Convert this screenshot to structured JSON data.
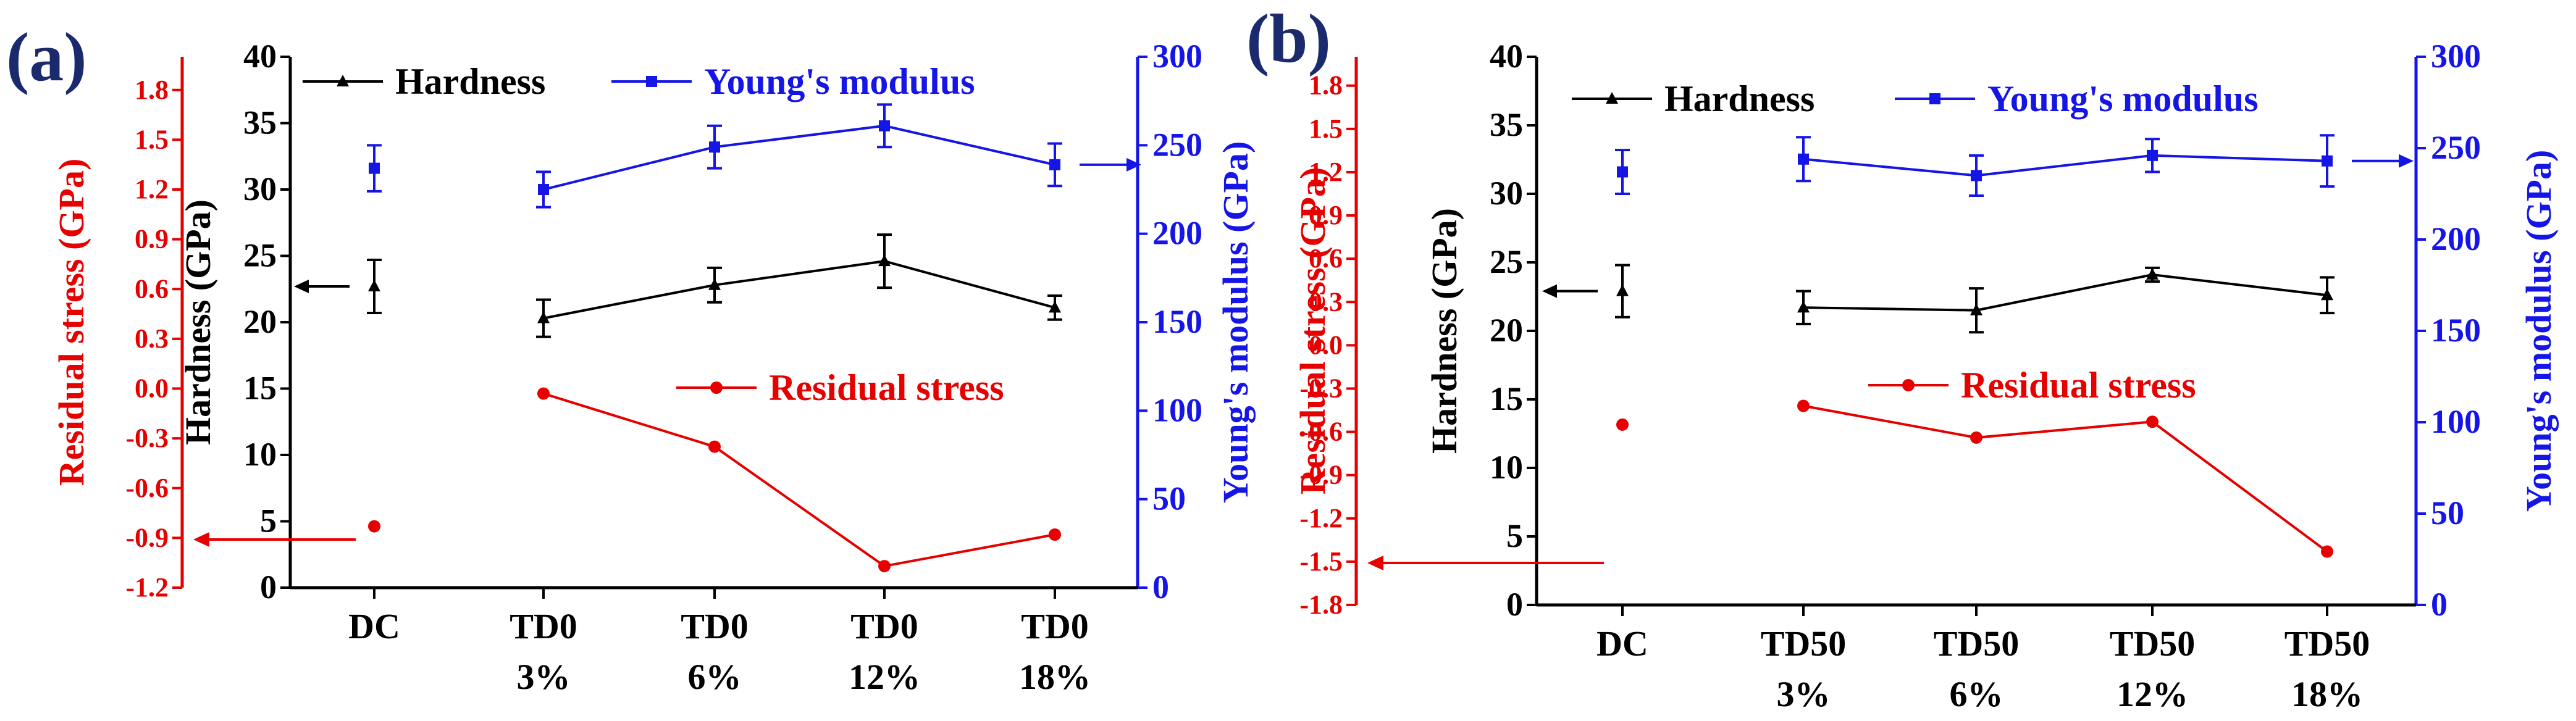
{
  "colors": {
    "hardness": "#000000",
    "modulus": "#1515e6",
    "stress": "#e60000",
    "panel_label": "#1a2a6c"
  },
  "chart_data": [
    {
      "type": "line",
      "panel_label": "(a)",
      "categories": [
        "DC",
        "TD0 3%",
        "TD0 6%",
        "TD0 12%",
        "TD0 18%"
      ],
      "category_lines": [
        [
          "DC"
        ],
        [
          "TD0",
          "3%"
        ],
        [
          "TD0",
          "6%"
        ],
        [
          "TD0",
          "12%"
        ],
        [
          "TD0",
          "18%"
        ]
      ],
      "series": [
        {
          "name": "Hardness",
          "axis": "hardness",
          "marker": "triangle",
          "connect_from": 1,
          "values": [
            22.7,
            20.3,
            22.8,
            24.6,
            21.1
          ],
          "errors": [
            2.0,
            1.4,
            1.3,
            2.0,
            0.9
          ]
        },
        {
          "name": "Young's modulus",
          "axis": "modulus",
          "marker": "square",
          "connect_from": 1,
          "values": [
            237,
            225,
            249,
            261,
            239
          ],
          "errors": [
            13,
            10,
            12,
            12,
            12
          ]
        },
        {
          "name": "Residual stress",
          "axis": "stress",
          "marker": "circle",
          "connect_from": 1,
          "values": [
            -0.83,
            -0.03,
            -0.35,
            -1.07,
            -0.88
          ]
        }
      ],
      "axes": {
        "stress": {
          "label": "Residual stress (GPa)",
          "ylim": [
            -1.2,
            2.0
          ],
          "ticks": [
            "-1.2",
            "-0.9",
            "-0.6",
            "-0.3",
            "0.0",
            "0.3",
            "0.6",
            "0.9",
            "1.2",
            "1.5",
            "1.8"
          ]
        },
        "hardness": {
          "label": "Hardness (GPa)",
          "ylim": [
            0,
            40
          ],
          "ticks": [
            "0",
            "5",
            "10",
            "15",
            "20",
            "25",
            "30",
            "35",
            "40"
          ]
        },
        "modulus": {
          "label": "Young's modulus (GPa)",
          "ylim": [
            0,
            300
          ],
          "ticks": [
            "0",
            "50",
            "100",
            "150",
            "200",
            "250",
            "300"
          ]
        }
      },
      "legend": {
        "top": [
          "Hardness",
          "Young's modulus"
        ],
        "inner": "Residual stress"
      }
    },
    {
      "type": "line",
      "panel_label": "(b)",
      "categories": [
        "DC",
        "TD50 3%",
        "TD50 6%",
        "TD50 12%",
        "TD50 18%"
      ],
      "category_lines": [
        [
          "DC"
        ],
        [
          "TD50",
          "3%"
        ],
        [
          "TD50",
          "6%"
        ],
        [
          "TD50",
          "12%"
        ],
        [
          "TD50",
          "18%"
        ]
      ],
      "series": [
        {
          "name": "Hardness",
          "axis": "hardness",
          "marker": "triangle",
          "connect_from": 1,
          "values": [
            22.9,
            21.7,
            21.5,
            24.1,
            22.6
          ],
          "errors": [
            1.9,
            1.2,
            1.6,
            0.5,
            1.3
          ]
        },
        {
          "name": "Young's modulus",
          "axis": "modulus",
          "marker": "square",
          "connect_from": 1,
          "values": [
            237,
            244,
            235,
            246,
            243
          ],
          "errors": [
            12,
            12,
            11,
            9,
            14
          ]
        },
        {
          "name": "Residual stress",
          "axis": "stress",
          "marker": "circle",
          "connect_from": 1,
          "values": [
            -0.55,
            -0.42,
            -0.64,
            -0.53,
            -1.43
          ]
        }
      ],
      "axes": {
        "stress": {
          "label": "Residual stress (GPa)",
          "ylim": [
            -1.8,
            2.0
          ],
          "ticks": [
            "-1.8",
            "-1.5",
            "-1.2",
            "-0.9",
            "-0.6",
            "-0.3",
            "0.0",
            "0.3",
            "0.6",
            "0.9",
            "1.2",
            "1.5",
            "1.8"
          ]
        },
        "hardness": {
          "label": "Hardness (GPa)",
          "ylim": [
            0,
            40
          ],
          "ticks": [
            "0",
            "5",
            "10",
            "15",
            "20",
            "25",
            "30",
            "35",
            "40"
          ]
        },
        "modulus": {
          "label": "Young's modulus (GPa)",
          "ylim": [
            0,
            300
          ],
          "ticks": [
            "0",
            "50",
            "100",
            "150",
            "200",
            "250",
            "300"
          ]
        }
      },
      "legend": {
        "top": [
          "Hardness",
          "Young's modulus"
        ],
        "inner": "Residual stress"
      }
    }
  ]
}
